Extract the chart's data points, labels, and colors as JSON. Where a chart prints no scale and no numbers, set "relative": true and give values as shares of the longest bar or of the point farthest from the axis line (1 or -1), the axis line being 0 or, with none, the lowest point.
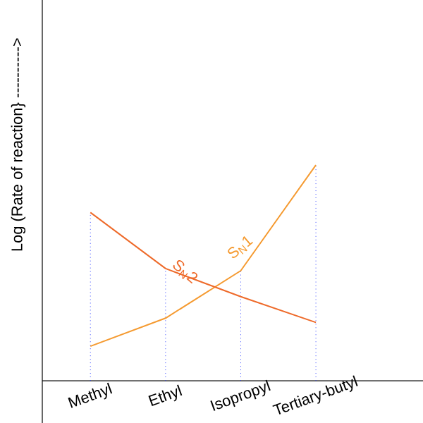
{
  "chart_data": {
    "type": "line",
    "relative": true,
    "ylabel": "Log (Rate of reaction} ---------->",
    "categories": [
      "Methyl",
      "Ethyl",
      "Isopropyl",
      "Tertiary-butyl"
    ],
    "series": [
      {
        "name": "S$_{N}$1",
        "color": "#f59a30",
        "values": [
          0.16,
          0.29,
          0.51,
          1
        ]
      },
      {
        "name": "S$_{N}$2",
        "color": "#ee6a2a",
        "values": [
          0.78,
          0.52,
          0.39,
          0.27
        ]
      }
    ],
    "grid": "x",
    "marker": "none",
    "line_style": "solid"
  }
}
